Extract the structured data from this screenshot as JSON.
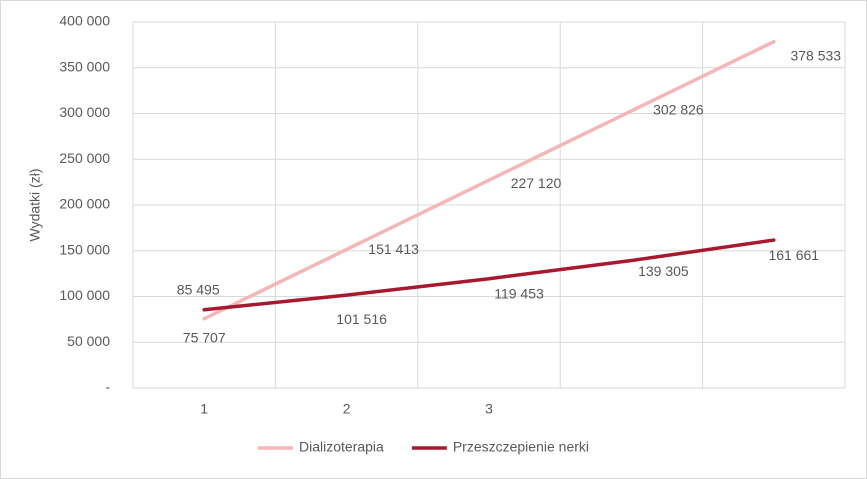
{
  "chart_data": {
    "type": "line",
    "y_label": "Wydatki (zł)",
    "categories": [
      "1",
      "2",
      "3",
      null,
      null
    ],
    "series": [
      {
        "name": "Dializoterapia",
        "color": "#f4b6b6",
        "values": [
          75707,
          151413,
          227120,
          302826,
          378533
        ],
        "value_labels": [
          "75 707",
          "151 413",
          "227 120",
          "302 826",
          "378 533"
        ]
      },
      {
        "name": "Przeszczepienie nerki",
        "color": "#a6192e",
        "values": [
          85495,
          101516,
          119453,
          139305,
          161661
        ],
        "value_labels": [
          "85 495",
          "101 516",
          "119 453",
          "139 305",
          "161 661"
        ]
      }
    ],
    "ylim": [
      0,
      400000
    ],
    "yticks": [
      {
        "value": 0,
        "label": "-"
      },
      {
        "value": 50000,
        "label": "50 000"
      },
      {
        "value": 100000,
        "label": "100 000"
      },
      {
        "value": 150000,
        "label": "150 000"
      },
      {
        "value": 200000,
        "label": "200 000"
      },
      {
        "value": 250000,
        "label": "250 000"
      },
      {
        "value": 300000,
        "label": "300 000"
      },
      {
        "value": 350000,
        "label": "350 000"
      },
      {
        "value": 400000,
        "label": "400 000"
      }
    ],
    "grid": true,
    "legend": "bottom"
  }
}
